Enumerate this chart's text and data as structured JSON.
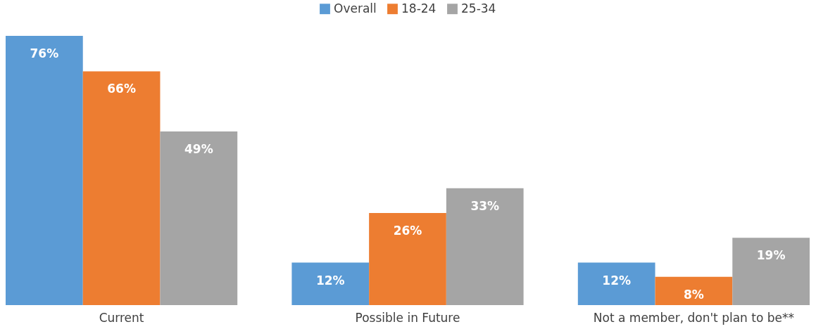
{
  "chart_data": {
    "type": "bar",
    "categories": [
      "Current",
      "Possible in Future",
      "Not a member, don't plan to be**"
    ],
    "series": [
      {
        "name": "Overall",
        "color": "#5b9bd5",
        "values": [
          76,
          12,
          12
        ],
        "value_labels": [
          "76%",
          "12%",
          "12%"
        ]
      },
      {
        "name": "18-24",
        "color": "#ed7d31",
        "values": [
          66,
          26,
          8
        ],
        "value_labels": [
          "66%",
          "26%",
          "8%"
        ]
      },
      {
        "name": "25-34",
        "color": "#a5a5a5",
        "values": [
          49,
          33,
          19
        ],
        "value_labels": [
          "49%",
          "33%",
          "19%"
        ]
      }
    ],
    "legend": "top",
    "grid": false
  }
}
